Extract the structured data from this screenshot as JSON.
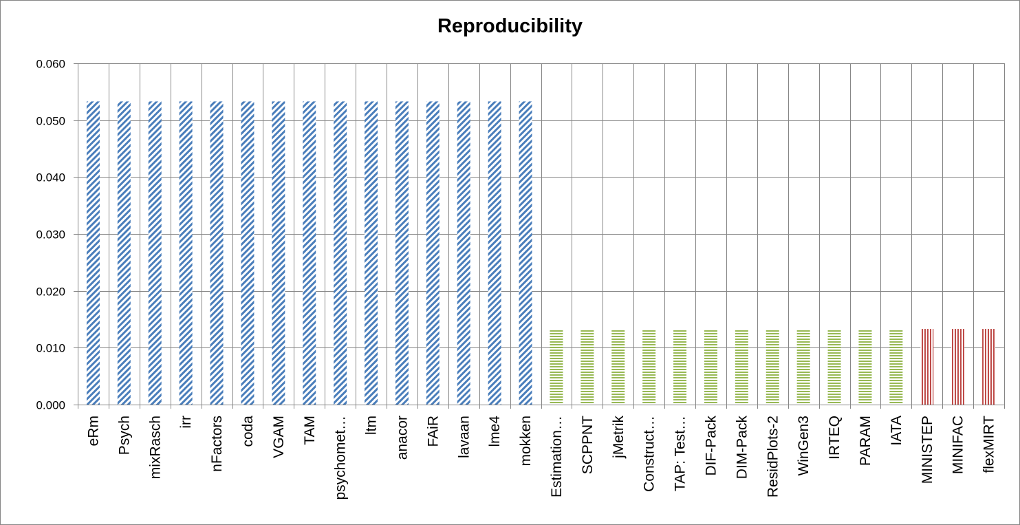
{
  "chart_data": {
    "type": "bar",
    "title": "Reproducibility",
    "xlabel": "",
    "ylabel": "",
    "ylim": [
      0,
      0.06
    ],
    "yticks": [
      "0.000",
      "0.010",
      "0.020",
      "0.030",
      "0.040",
      "0.050",
      "0.060"
    ],
    "grid": true,
    "legend": "none",
    "categories": [
      "eRm",
      "Psych",
      "mixRasch",
      "irr",
      "nFactors",
      "coda",
      "VGAM",
      "TAM",
      "psychomet…",
      "ltm",
      "anacor",
      "FAiR",
      "lavaan",
      "lme4",
      "mokken",
      "Estimation…",
      "SCPPNT",
      "jMetrik",
      "Construct…",
      "TAP: Test…",
      "DIF-Pack",
      "DIM-Pack",
      "ResidPlots-2",
      "WinGen3",
      "IRTEQ",
      "PARAM",
      "IATA",
      "MINISTEP",
      "MINIFAC",
      "flexMIRT"
    ],
    "values": [
      0.0533,
      0.0533,
      0.0533,
      0.0533,
      0.0533,
      0.0533,
      0.0533,
      0.0533,
      0.0533,
      0.0533,
      0.0533,
      0.0533,
      0.0533,
      0.0533,
      0.0533,
      0.0133,
      0.0133,
      0.0133,
      0.0133,
      0.0133,
      0.0133,
      0.0133,
      0.0133,
      0.0133,
      0.0133,
      0.0133,
      0.0133,
      0.0133,
      0.0133,
      0.0133
    ],
    "groups": [
      "blue",
      "blue",
      "blue",
      "blue",
      "blue",
      "blue",
      "blue",
      "blue",
      "blue",
      "blue",
      "blue",
      "blue",
      "blue",
      "blue",
      "blue",
      "green",
      "green",
      "green",
      "green",
      "green",
      "green",
      "green",
      "green",
      "green",
      "green",
      "green",
      "green",
      "red",
      "red",
      "red"
    ],
    "colors": {
      "blue": "#4a7ebb",
      "green": "#98b954",
      "red": "#be4b48",
      "grid": "#868686",
      "axis": "#868686"
    },
    "patterns": {
      "blue": "diagonal-stripes",
      "green": "horizontal-stripes",
      "red": "vertical-stripes"
    }
  }
}
